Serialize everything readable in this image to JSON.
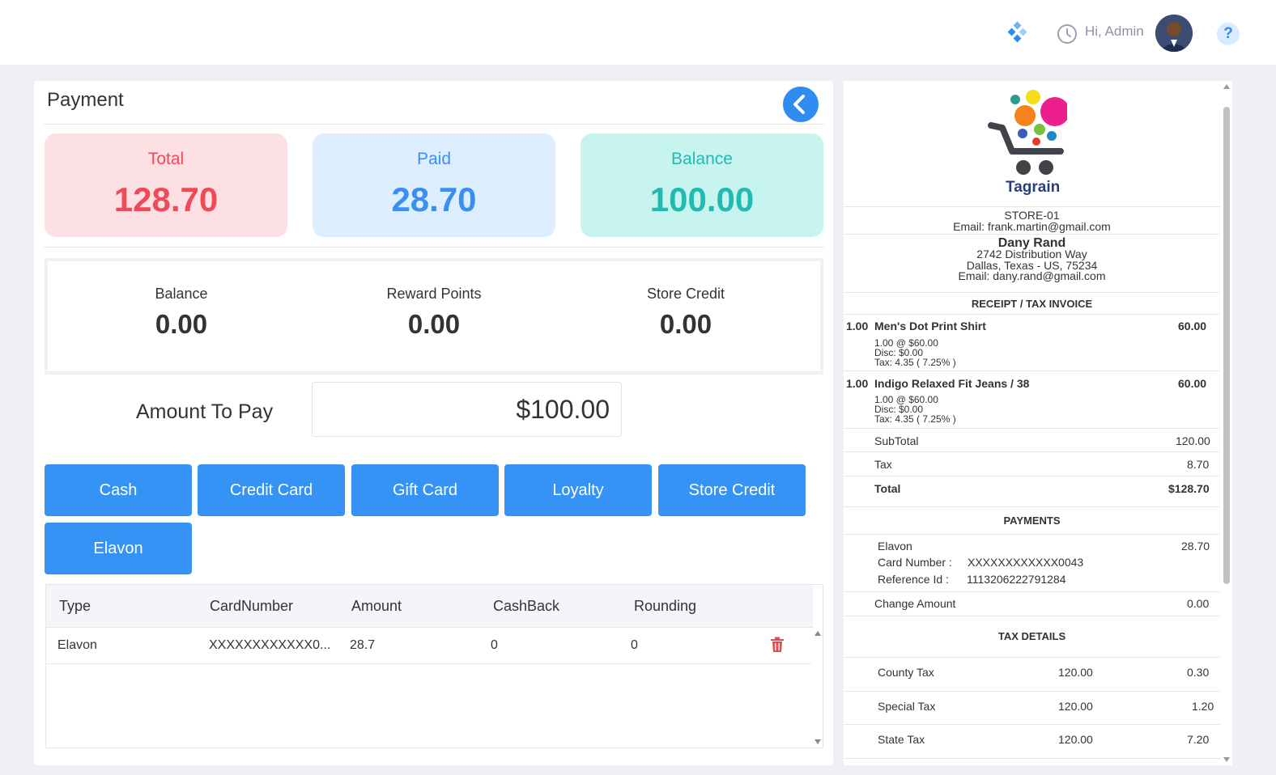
{
  "header": {
    "greeting": "Hi, Admin",
    "icons": [
      "apps-grid-icon",
      "clock-icon",
      "avatar",
      "help-icon"
    ],
    "help_symbol": "?"
  },
  "payment": {
    "title": "Payment",
    "summary": {
      "total_label": "Total",
      "total_value": "128.70",
      "paid_label": "Paid",
      "paid_value": "28.70",
      "balance_label": "Balance",
      "balance_value": "100.00"
    },
    "customer": {
      "balance_label": "Balance",
      "balance_value": "0.00",
      "reward_label": "Reward Points",
      "reward_value": "0.00",
      "credit_label": "Store Credit",
      "credit_value": "0.00"
    },
    "amount_to_pay_label": "Amount To Pay",
    "amount_to_pay_value": "$100.00",
    "methods": [
      "Cash",
      "Credit Card",
      "Gift Card",
      "Loyalty",
      "Store Credit",
      "Elavon"
    ],
    "table": {
      "columns": [
        "Type",
        "CardNumber",
        "Amount",
        "CashBack",
        "Rounding"
      ],
      "rows": [
        {
          "type": "Elavon",
          "card": "XXXXXXXXXXXX0...",
          "amount": "28.7",
          "cashback": "0",
          "rounding": "0"
        }
      ]
    }
  },
  "receipt": {
    "brand": "Tagrain",
    "store": "STORE-01",
    "store_email": "Email: frank.martin@gmail.com",
    "customer_name": "Dany Rand",
    "address1": "2742 Distribution Way",
    "address2": "Dallas, Texas - US, 75234",
    "customer_email": "Email: dany.rand@gmail.com",
    "receipt_title": "RECEIPT / TAX INVOICE",
    "items": [
      {
        "qty": "1.00",
        "name": "Men's Dot Print Shirt",
        "total": "60.00",
        "line1": "1.00 @ $60.00",
        "line2": "Disc: $0.00",
        "line3": "Tax: 4.35 ( 7.25% )"
      },
      {
        "qty": "1.00",
        "name": "Indigo Relaxed Fit Jeans / 38",
        "total": "60.00",
        "line1": "1.00 @ $60.00",
        "line2": "Disc: $0.00",
        "line3": "Tax: 4.35 ( 7.25% )"
      }
    ],
    "subtotal_label": "SubTotal",
    "subtotal_value": "120.00",
    "tax_label": "Tax",
    "tax_value": "8.70",
    "total_label": "Total",
    "total_value": "$128.70",
    "payments_title": "PAYMENTS",
    "payment_type": "Elavon",
    "payment_amount": "28.70",
    "card_label": "Card Number :",
    "card_value": "XXXXXXXXXXXX0043",
    "ref_label": "Reference Id :",
    "ref_value": "1113206222791284",
    "change_label": "Change Amount",
    "change_value": "0.00",
    "tax_details_title": "TAX DETAILS",
    "tax_details": [
      {
        "name": "County Tax",
        "base": "120.00",
        "amount": "0.30"
      },
      {
        "name": "Special Tax",
        "base": "120.00",
        "amount": "1.20"
      },
      {
        "name": "State Tax",
        "base": "120.00",
        "amount": "7.20"
      }
    ]
  },
  "colors": {
    "primary": "#3593f5",
    "total": "#ee4a58",
    "paid": "#3a8ff0",
    "balance": "#22bab0"
  }
}
